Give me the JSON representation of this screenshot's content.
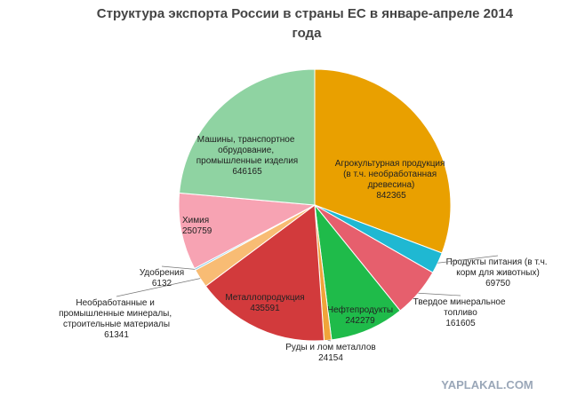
{
  "chart_data": {
    "type": "pie",
    "title": "Структура экспорта России в страны ЕС в январе-апреле 2014 года",
    "categories": [
      "Агрокультурная продукция (в т.ч. необработанная древесина)",
      "Продукты питания (в т.ч. корм для животных)",
      "Твердое минеральное топливо",
      "Нефтепродукты",
      "Руды и лом металлов",
      "Металлопродукция",
      "Необработанные и промышленные минералы, строительные материалы",
      "Удобрения",
      "Химия",
      "Машины, транспортное обрудование, промышленные изделия"
    ],
    "values": [
      842365,
      69750,
      161605,
      242279,
      24154,
      435591,
      61341,
      6132,
      250759,
      646165
    ],
    "colors": [
      "#e9a000",
      "#1fb8d2",
      "#e65f6d",
      "#1fbb4a",
      "#f0a43a",
      "#d23a3c",
      "#f8bc74",
      "#86cbe8",
      "#f7a3b3",
      "#8fd3a2"
    ],
    "watermark": "YAPLAKAL.COM"
  }
}
